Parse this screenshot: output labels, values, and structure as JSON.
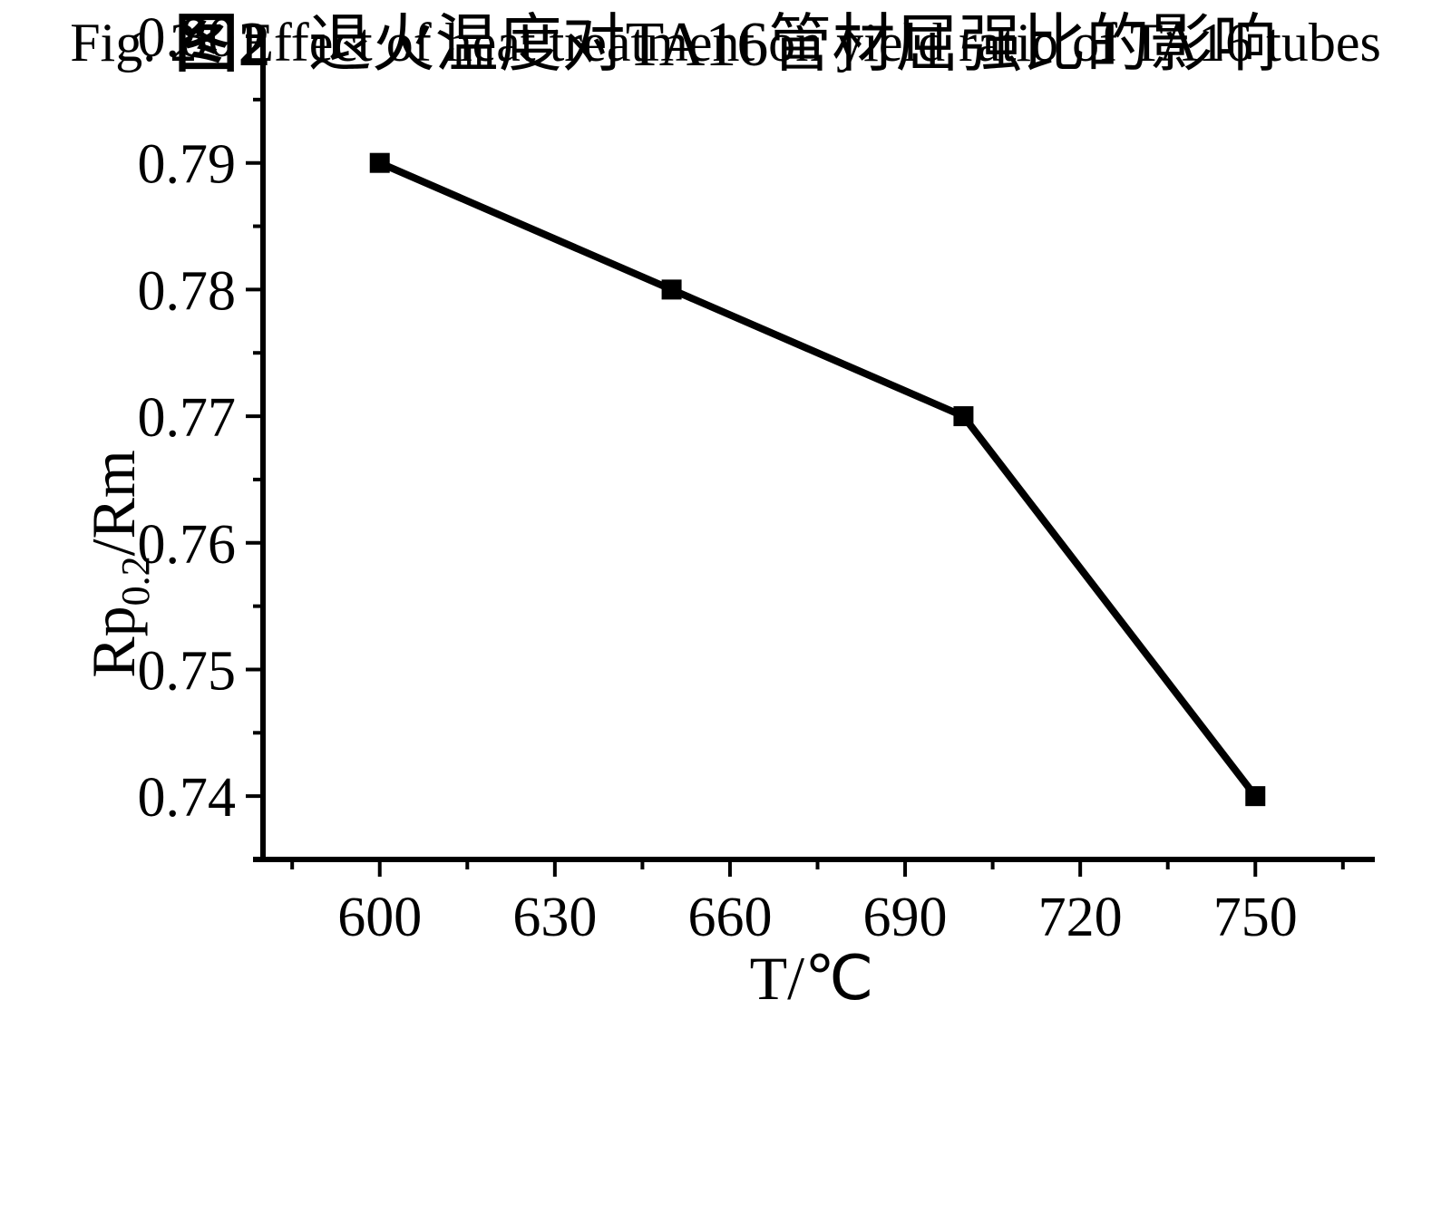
{
  "figure": {
    "caption_zh": {
      "label": "图2",
      "text": "退火温度对TA16管材屈强比的影响"
    },
    "caption_en": {
      "label": "Fig. 2",
      "text": "Effect of heat treatment on yield ratio of TA16 tubes"
    }
  },
  "chart_data": {
    "type": "line",
    "title": "图2 退火温度对TA16管材屈强比的影响",
    "title_en": "Fig. 2 Effect of heat treatment on yield ratio of TA16 tubes",
    "xlabel": "T/℃",
    "ylabel": "Rp0.2/Rm",
    "ylabel_parts": {
      "main": "Rp",
      "sub": "0.2",
      "tail": "/Rm"
    },
    "x": [
      600,
      650,
      700,
      750
    ],
    "y": [
      0.79,
      0.78,
      0.77,
      0.74
    ],
    "xlim": [
      580,
      770
    ],
    "ylim": [
      0.735,
      0.8
    ],
    "xticks": [
      {
        "value": 600,
        "label": "600"
      },
      {
        "value": 630,
        "label": "630"
      },
      {
        "value": 660,
        "label": "660"
      },
      {
        "value": 690,
        "label": "690"
      },
      {
        "value": 720,
        "label": "720"
      },
      {
        "value": 750,
        "label": "750"
      }
    ],
    "xticks_minor": [
      585,
      615,
      645,
      675,
      705,
      735,
      765
    ],
    "yticks": [
      {
        "value": 0.8,
        "label": "0.80"
      },
      {
        "value": 0.79,
        "label": "0.79"
      },
      {
        "value": 0.78,
        "label": "0.78"
      },
      {
        "value": 0.77,
        "label": "0.77"
      },
      {
        "value": 0.76,
        "label": "0.76"
      },
      {
        "value": 0.75,
        "label": "0.75"
      },
      {
        "value": 0.74,
        "label": "0.74"
      }
    ],
    "yticks_minor": [
      0.745,
      0.755,
      0.765,
      0.775,
      0.785,
      0.795
    ],
    "grid": false,
    "legend": null,
    "marker": "square",
    "line_color": "#000000",
    "background": "#ffffff"
  }
}
